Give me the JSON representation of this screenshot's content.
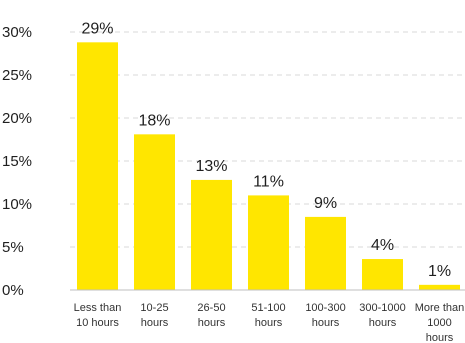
{
  "chart_data": {
    "type": "bar",
    "categories": [
      "Less than 10 hours",
      "10-25 hours",
      "26-50 hours",
      "51-100 hours",
      "100-300 hours",
      "300-1000 hours",
      "More than 1000 hours"
    ],
    "category_lines": [
      [
        "Less than",
        "10 hours"
      ],
      [
        "10-25",
        "hours"
      ],
      [
        "26-50",
        "hours"
      ],
      [
        "51-100",
        "hours"
      ],
      [
        "100-300",
        "hours"
      ],
      [
        "300-1000",
        "hours"
      ],
      [
        "More than",
        "1000",
        "hours"
      ]
    ],
    "values": [
      29,
      18,
      13,
      11,
      9,
      4,
      1
    ],
    "bar_heights": [
      28.8,
      18.1,
      12.8,
      11.0,
      8.5,
      3.6,
      0.6
    ],
    "data_labels": [
      "29%",
      "18%",
      "13%",
      "11%",
      "9%",
      "4%",
      "1%"
    ],
    "ylim": [
      0,
      30
    ],
    "yticks": [
      0,
      5,
      10,
      15,
      20,
      25,
      30
    ],
    "ytick_labels": [
      "0%",
      "5%",
      "10%",
      "15%",
      "20%",
      "25%",
      "30%"
    ],
    "title": "",
    "xlabel": "",
    "ylabel": "",
    "grid": true,
    "legend": "none",
    "bar_color": "#FFE600"
  }
}
